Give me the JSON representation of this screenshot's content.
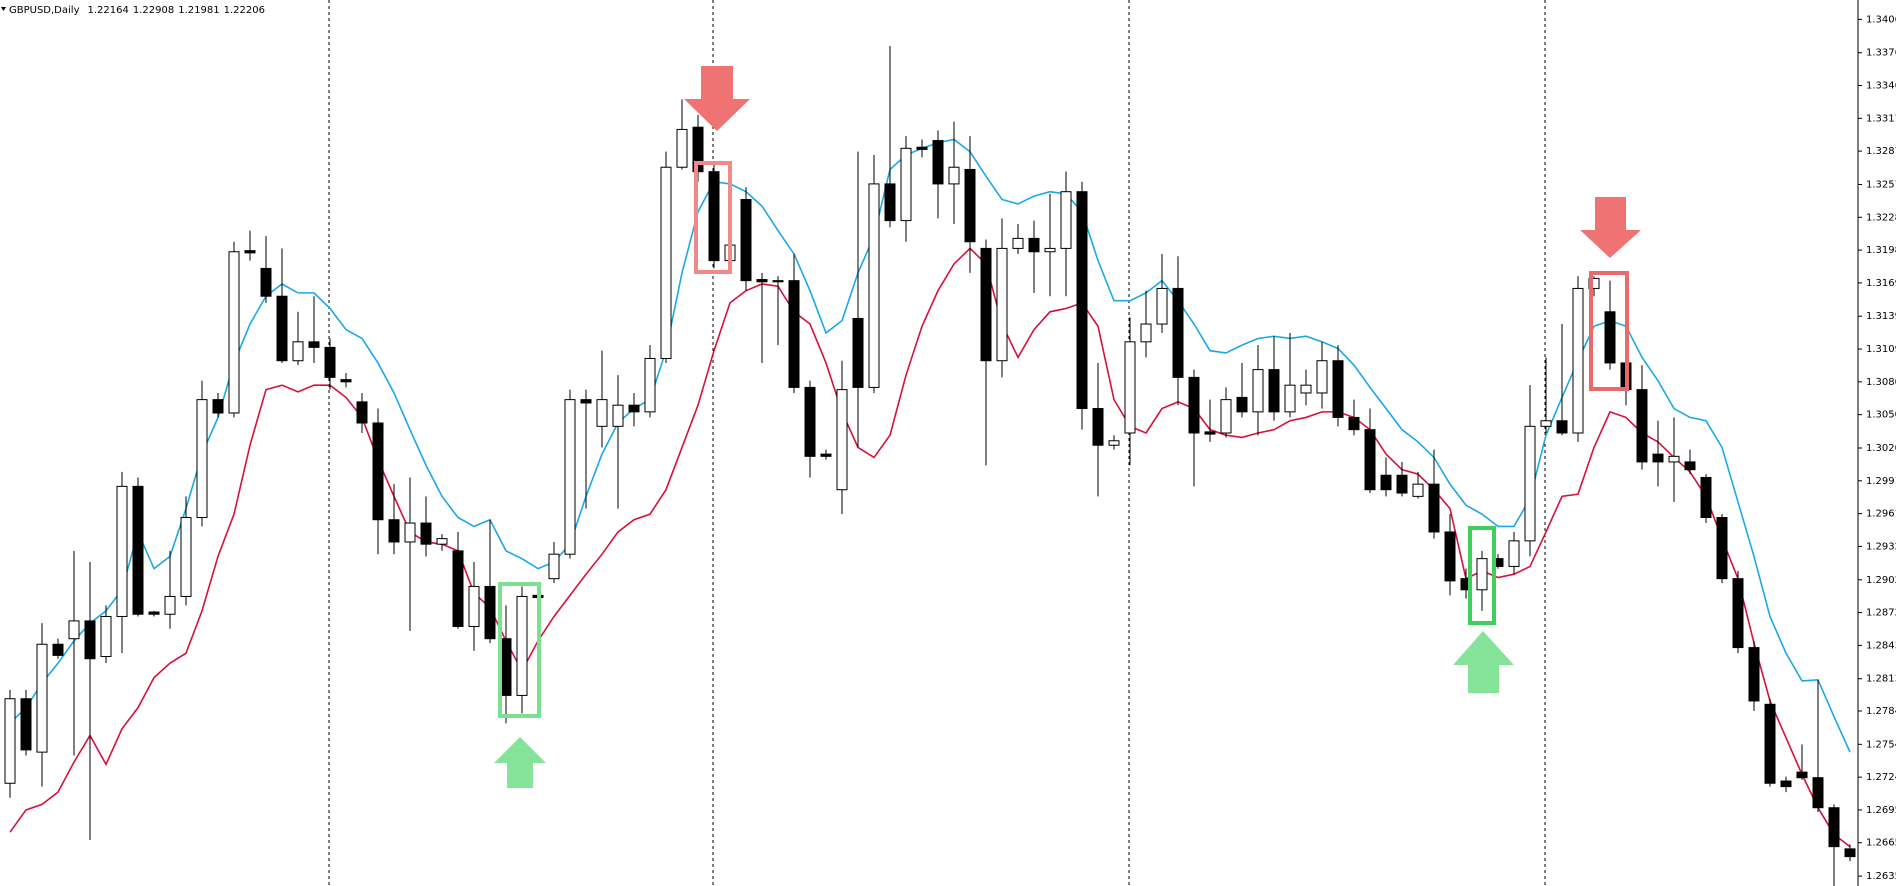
{
  "chart_data": {
    "type": "candlestick",
    "title": "GBPUSD,Daily",
    "header_values": [
      1.22164,
      1.22908,
      1.21981,
      1.22206
    ],
    "open": [
      1.2719,
      1.2795,
      1.2747,
      1.2844,
      1.2849,
      1.2865,
      1.2833,
      1.2869,
      1.2986,
      1.2873,
      1.2871,
      1.2887,
      1.2958,
      1.3064,
      1.3052,
      1.3198,
      1.3182,
      1.3157,
      1.3099,
      1.3116,
      1.3111,
      1.3082,
      1.3062,
      1.3043,
      1.2956,
      1.2936,
      1.2953,
      1.2934,
      1.2928,
      1.286,
      1.2896,
      1.2849,
      1.2798,
      1.2888,
      1.2903,
      1.2925,
      1.3064,
      1.304,
      1.304,
      1.3059,
      1.3053,
      1.3101,
      1.3273,
      1.3309,
      1.3269,
      1.3189,
      1.3244,
      1.3172,
      1.3171,
      1.3171,
      1.3075,
      1.3015,
      1.2983,
      1.3137,
      1.3075,
      1.3258,
      1.3225,
      1.3291,
      1.3297,
      1.3258,
      1.3271,
      1.32,
      1.3099,
      1.32,
      1.3209,
      1.3197,
      1.32,
      1.3251,
      1.3056,
      1.3023,
      1.3034,
      1.3116,
      1.3132,
      1.3164,
      1.3084,
      1.3035,
      1.3034,
      1.3066,
      1.3053,
      1.3091,
      1.3053,
      1.307,
      1.307,
      1.3099,
      1.3048,
      1.3037,
      1.2996,
      1.2996,
      1.2977,
      1.2988,
      1.2945,
      1.2903,
      1.2893,
      1.2921,
      1.2914,
      1.2937,
      1.304,
      1.3045,
      1.3034,
      1.3164,
      1.3143,
      1.3097,
      1.3073,
      1.3015,
      1.3008,
      1.3008,
      1.2994,
      1.2958,
      1.2903,
      1.2841,
      1.279,
      1.2721,
      1.2729,
      1.2724,
      1.2697,
      1.266
    ],
    "high": [
      1.2803,
      1.2803,
      1.2863,
      1.2849,
      1.2928,
      1.2918,
      1.2879,
      1.2999,
      1.2994,
      1.2874,
      1.2928,
      1.2977,
      1.3081,
      1.307,
      1.3206,
      1.3216,
      1.3211,
      1.32,
      1.3143,
      1.3157,
      1.3119,
      1.3088,
      1.307,
      1.3056,
      1.2988,
      1.2994,
      1.2977,
      1.2943,
      1.2945,
      1.2918,
      1.2956,
      1.2879,
      1.2896,
      1.2893,
      1.2936,
      1.3073,
      1.3073,
      1.3108,
      1.3086,
      1.307,
      1.3113,
      1.3287,
      1.3334,
      1.332,
      1.3276,
      1.3211,
      1.3255,
      1.3178,
      1.3175,
      1.3195,
      1.3081,
      1.3019,
      1.3099,
      1.3287,
      1.3284,
      1.3382,
      1.3301,
      1.3298,
      1.3306,
      1.3314,
      1.3301,
      1.3208,
      1.3227,
      1.3222,
      1.3225,
      1.3249,
      1.3269,
      1.326,
      1.3097,
      1.3032,
      1.3138,
      1.3162,
      1.3195,
      1.3193,
      1.3091,
      1.3064,
      1.3075,
      1.3097,
      1.3113,
      1.3121,
      1.3124,
      1.3091,
      1.3116,
      1.3113,
      1.3064,
      1.3056,
      1.3012,
      1.3008,
      1.2999,
      1.3019,
      1.2961,
      1.2912,
      1.2928,
      1.2925,
      1.2945,
      1.3077,
      1.3102,
      1.3132,
      1.3175,
      1.3175,
      1.3171,
      1.3102,
      1.3095,
      1.3045,
      1.3048,
      1.3019,
      1.2997,
      1.2961,
      1.291,
      1.2847,
      1.2795,
      1.2725,
      1.2754,
      1.2812,
      1.27,
      1.2664
    ],
    "low": [
      1.2706,
      1.2744,
      1.2716,
      1.2831,
      1.2744,
      1.2668,
      1.2827,
      1.2836,
      1.2869,
      1.2869,
      1.2858,
      1.2879,
      1.295,
      1.3048,
      1.3048,
      1.3189,
      1.3151,
      1.3097,
      1.3095,
      1.3097,
      1.3073,
      1.3075,
      1.3034,
      1.2925,
      1.2925,
      1.2856,
      1.2923,
      1.2928,
      1.2858,
      1.2838,
      1.2845,
      1.2773,
      1.2782,
      1.2882,
      1.2899,
      1.2921,
      1.2966,
      1.3021,
      1.2966,
      1.304,
      1.3048,
      1.3097,
      1.3271,
      1.326,
      1.3182,
      1.3184,
      1.3162,
      1.3097,
      1.3113,
      1.307,
      1.2994,
      1.301,
      1.2961,
      1.3021,
      1.307,
      1.3219,
      1.3206,
      1.3282,
      1.3227,
      1.3222,
      1.3178,
      1.3005,
      1.3084,
      1.3195,
      1.316,
      1.3157,
      1.3157,
      1.3037,
      1.2977,
      1.3019,
      1.3005,
      1.3102,
      1.3124,
      1.3059,
      1.2986,
      1.3026,
      1.303,
      1.3048,
      1.3032,
      1.3045,
      1.3048,
      1.3059,
      1.3056,
      1.304,
      1.3032,
      1.298,
      1.2977,
      1.2977,
      1.2975,
      1.2939,
      1.2888,
      1.2885,
      1.2874,
      1.2912,
      1.2907,
      1.2923,
      1.3034,
      1.3032,
      1.3026,
      1.3157,
      1.3091,
      1.3059,
      1.3001,
      1.2986,
      1.2972,
      1.2997,
      1.2953,
      1.2899,
      1.2836,
      1.2784,
      1.2716,
      1.2711,
      1.2722,
      1.2693,
      1.2626,
      1.2649
    ],
    "close": [
      1.2795,
      1.2749,
      1.2844,
      1.2834,
      1.2865,
      1.2831,
      1.2869,
      1.2986,
      1.2871,
      1.2871,
      1.2887,
      1.2958,
      1.3064,
      1.3052,
      1.3197,
      1.3196,
      1.3157,
      1.3099,
      1.3116,
      1.3111,
      1.3084,
      1.308,
      1.3043,
      1.2956,
      1.2936,
      1.2953,
      1.2934,
      1.2939,
      1.286,
      1.2896,
      1.2849,
      1.2798,
      1.2887,
      1.2886,
      1.2925,
      1.3064,
      1.3061,
      1.3064,
      1.3059,
      1.3053,
      1.3101,
      1.3273,
      1.3307,
      1.3269,
      1.3189,
      1.3203,
      1.3171,
      1.317,
      1.317,
      1.3075,
      1.3013,
      1.3013,
      1.3073,
      1.3075,
      1.3258,
      1.3225,
      1.329,
      1.3289,
      1.3258,
      1.3273,
      1.3206,
      1.3099,
      1.32,
      1.3209,
      1.3197,
      1.32,
      1.3251,
      1.3056,
      1.3023,
      1.3027,
      1.3116,
      1.3132,
      1.3164,
      1.3084,
      1.3034,
      1.3033,
      1.3064,
      1.3053,
      1.3091,
      1.3053,
      1.3077,
      1.3077,
      1.3099,
      1.3048,
      1.3037,
      1.2983,
      1.2983,
      1.298,
      1.2988,
      1.2945,
      1.2901,
      1.2893,
      1.2921,
      1.2914,
      1.2937,
      1.304,
      1.3045,
      1.3034,
      1.3164,
      1.3173,
      1.3097,
      1.3073,
      1.3008,
      1.3008,
      1.3013,
      1.3001,
      1.2958,
      1.2903,
      1.2841,
      1.2793,
      1.2719,
      1.2716,
      1.2724,
      1.2697,
      1.2662,
      1.2653
    ],
    "bull_color": "#ffffff",
    "bear_color": "#000000",
    "series": [
      {
        "color": "#1aa9e6",
        "values": [
          1.2773,
          1.2787,
          1.2809,
          1.2827,
          1.2847,
          1.2863,
          1.2874,
          1.2893,
          1.2945,
          1.2912,
          1.2923,
          1.2966,
          1.3015,
          1.3048,
          1.3097,
          1.3132,
          1.3157,
          1.3168,
          1.316,
          1.316,
          1.3146,
          1.3127,
          1.3119,
          1.3097,
          1.307,
          1.3037,
          1.3005,
          1.2977,
          1.2958,
          1.295,
          1.2956,
          1.2928,
          1.2921,
          1.2912,
          1.2918,
          1.2934,
          1.2977,
          1.3015,
          1.3043,
          1.3056,
          1.3064,
          1.3108,
          1.3178,
          1.3233,
          1.326,
          1.3258,
          1.3251,
          1.3238,
          1.3216,
          1.3195,
          1.3162,
          1.3124,
          1.3135,
          1.3178,
          1.3211,
          1.3271,
          1.3284,
          1.329,
          1.3295,
          1.3298,
          1.3287,
          1.3265,
          1.3244,
          1.324,
          1.3247,
          1.3251,
          1.3249,
          1.3233,
          1.3189,
          1.3153,
          1.3153,
          1.316,
          1.3171,
          1.3153,
          1.3132,
          1.3108,
          1.3106,
          1.3113,
          1.3119,
          1.3121,
          1.3119,
          1.3121,
          1.3116,
          1.311,
          1.3095,
          1.3075,
          1.3056,
          1.3037,
          1.3026,
          1.3012,
          1.2988,
          1.2969,
          1.2961,
          1.295,
          1.295,
          1.2975,
          1.3032,
          1.3066,
          1.3099,
          1.313,
          1.3135,
          1.313,
          1.3102,
          1.3081,
          1.3056,
          1.3048,
          1.3045,
          1.3021,
          1.2972,
          1.2923,
          1.2869,
          1.2836,
          1.2811,
          1.2812,
          1.2779,
          1.2747
        ]
      },
      {
        "color": "#d8113a",
        "values": [
          1.2675,
          1.2695,
          1.27,
          1.2711,
          1.2738,
          1.2762,
          1.2736,
          1.2768,
          1.2787,
          1.2814,
          1.2827,
          1.2836,
          1.2874,
          1.2923,
          1.2961,
          1.3023,
          1.3073,
          1.3077,
          1.3071,
          1.3077,
          1.3077,
          1.3066,
          1.3048,
          1.301,
          1.2977,
          1.2945,
          1.2936,
          1.2934,
          1.2928,
          1.289,
          1.2877,
          1.2847,
          1.282,
          1.2847,
          1.2869,
          1.2888,
          1.2907,
          1.2925,
          1.2945,
          1.2956,
          1.2961,
          1.2983,
          1.3021,
          1.3059,
          1.3108,
          1.3151,
          1.3162,
          1.3168,
          1.3166,
          1.3143,
          1.3132,
          1.3097,
          1.3053,
          1.3021,
          1.3012,
          1.3032,
          1.3086,
          1.313,
          1.3162,
          1.3186,
          1.32,
          1.3186,
          1.3132,
          1.3102,
          1.3127,
          1.3143,
          1.3146,
          1.3151,
          1.313,
          1.3064,
          1.304,
          1.3034,
          1.3056,
          1.3062,
          1.3056,
          1.3037,
          1.3032,
          1.303,
          1.3034,
          1.3037,
          1.3045,
          1.3048,
          1.3053,
          1.3053,
          1.3048,
          1.3037,
          1.3015,
          1.3001,
          1.2997,
          1.2983,
          1.2966,
          1.2903,
          1.291,
          1.2904,
          1.2907,
          1.2914,
          1.2945,
          1.2977,
          1.2979,
          1.3021,
          1.3053,
          1.3048,
          1.3034,
          1.3026,
          1.3012,
          1.2999,
          1.2977,
          1.2939,
          1.2903,
          1.2845,
          1.2793,
          1.276,
          1.2727,
          1.2697,
          1.2673,
          1.2662
        ]
      }
    ],
    "ylim": [
      1.26266,
      1.34234
    ],
    "yticks": [
      {
        "value": 1.3406,
        "label": "1.34060"
      },
      {
        "value": 1.3376,
        "label": "1.33760"
      },
      1.33465,
      {
        "value": 1.3317,
        "label": "1.33170"
      },
      1.32875,
      1.32575,
      {
        "value": 1.3228,
        "label": "1.32280"
      },
      1.31985,
      {
        "value": 1.3169,
        "label": "1.31690"
      },
      {
        "value": 1.3139,
        "label": "1.31390"
      },
      1.31095,
      {
        "value": 1.308,
        "label": "1.30800"
      },
      1.30505,
      1.30205,
      {
        "value": 1.2991,
        "label": "1.29910"
      },
      1.29615,
      {
        "value": 1.2932,
        "label": "1.29320"
      },
      {
        "value": 1.2902,
        "label": "1.29020"
      },
      1.28725,
      {
        "value": 1.2843,
        "label": "1.28430"
      },
      {
        "value": 1.2813,
        "label": "1.28130"
      },
      {
        "value": 1.2784,
        "label": "1.27840"
      },
      {
        "value": 1.2754,
        "label": "1.27540"
      },
      1.27245,
      {
        "value": 1.2695,
        "label": "1.26950"
      },
      1.26655,
      1.26355
    ]
  }
}
